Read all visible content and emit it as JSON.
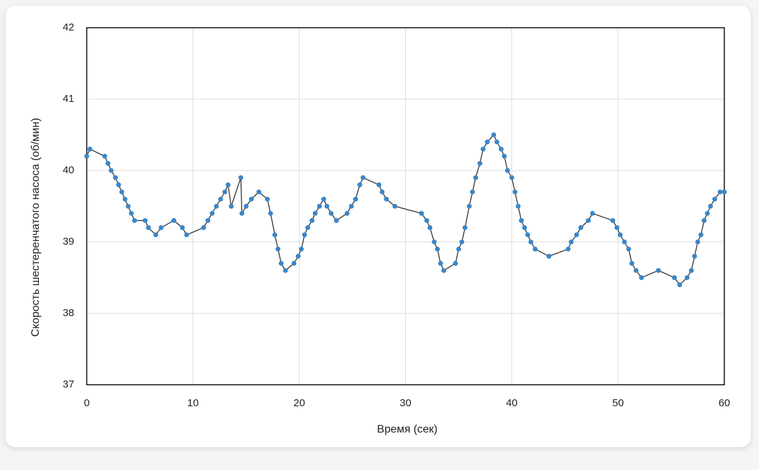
{
  "chart_data": {
    "type": "line",
    "xlabel": "Время (сек)",
    "ylabel": "Скорость шестеренчатого насоса (об/мин)",
    "x": [
      0,
      0.3,
      1.7,
      2,
      2.3,
      2.7,
      3,
      3.3,
      3.6,
      3.9,
      4.2,
      4.5,
      5.5,
      5.8,
      6.5,
      7,
      8.2,
      9,
      9.4,
      11,
      11.4,
      11.8,
      12.2,
      12.6,
      13,
      13.3,
      13.6,
      14.5,
      14.6,
      15,
      15.5,
      16.2,
      17,
      17.3,
      17.7,
      18,
      18.3,
      18.7,
      19.5,
      19.9,
      20.2,
      20.5,
      20.8,
      21.2,
      21.5,
      21.9,
      22.3,
      22.6,
      23,
      23.5,
      24.5,
      24.9,
      25.3,
      25.7,
      26,
      27.5,
      27.8,
      28.2,
      29,
      31.5,
      32,
      32.3,
      32.7,
      33,
      33.3,
      33.6,
      34.7,
      35,
      35.3,
      35.6,
      36,
      36.3,
      36.6,
      37,
      37.3,
      37.7,
      38.3,
      38.6,
      39,
      39.3,
      39.6,
      40,
      40.3,
      40.6,
      40.9,
      41.2,
      41.5,
      41.8,
      42.2,
      43.5,
      45.3,
      45.6,
      46.1,
      46.5,
      47.2,
      47.6,
      49.5,
      49.9,
      50.2,
      50.6,
      51,
      51.3,
      51.7,
      52.2,
      53.8,
      55.3,
      55.8,
      56.5,
      56.9,
      57.2,
      57.5,
      57.8,
      58.1,
      58.4,
      58.7,
      59.1,
      59.6,
      60
    ],
    "values": [
      40.2,
      40.3,
      40.2,
      40.1,
      40.0,
      39.9,
      39.8,
      39.7,
      39.6,
      39.5,
      39.4,
      39.3,
      39.3,
      39.2,
      39.1,
      39.2,
      39.3,
      39.2,
      39.1,
      39.2,
      39.3,
      39.4,
      39.5,
      39.6,
      39.7,
      39.8,
      39.5,
      39.9,
      39.4,
      39.5,
      39.6,
      39.7,
      39.6,
      39.4,
      39.1,
      38.9,
      38.7,
      38.6,
      38.7,
      38.8,
      38.9,
      39.1,
      39.2,
      39.3,
      39.4,
      39.5,
      39.6,
      39.5,
      39.4,
      39.3,
      39.4,
      39.5,
      39.6,
      39.8,
      39.9,
      39.8,
      39.7,
      39.6,
      39.5,
      39.4,
      39.3,
      39.2,
      39.0,
      38.9,
      38.7,
      38.6,
      38.7,
      38.9,
      39.0,
      39.2,
      39.5,
      39.7,
      39.9,
      40.1,
      40.3,
      40.4,
      40.5,
      40.4,
      40.3,
      40.2,
      40.0,
      39.9,
      39.7,
      39.5,
      39.3,
      39.2,
      39.1,
      39.0,
      38.9,
      38.8,
      38.9,
      39.0,
      39.1,
      39.2,
      39.3,
      39.4,
      39.3,
      39.2,
      39.1,
      39.0,
      38.9,
      38.7,
      38.6,
      38.5,
      38.6,
      38.5,
      38.4,
      38.5,
      38.6,
      38.8,
      39.0,
      39.1,
      39.3,
      39.4,
      39.5,
      39.6,
      39.7,
      39.7
    ],
    "color": "#3a86c8",
    "xlim": [
      0,
      60
    ],
    "xticks": [
      0,
      10,
      20,
      30,
      40,
      50,
      60
    ],
    "ylim": [
      37,
      42
    ],
    "yticks": [
      37,
      38,
      39,
      40,
      41,
      42
    ],
    "grid": true
  }
}
